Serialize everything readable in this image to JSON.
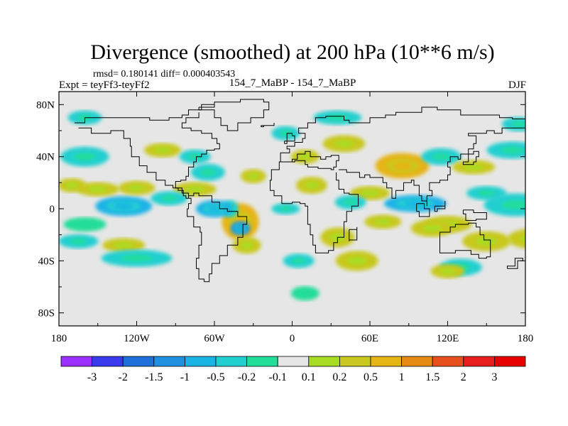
{
  "title": "Divergence (smoothed) at 200 hPa (10**6 m/s)",
  "stats": "rmsd= 0.180141 diff= 0.000403543",
  "expt": "Expt = teyFf3-teyFf2",
  "case": "154_7_MaBP - 154_7_MaBP",
  "season": "DJF",
  "chart_data": {
    "type": "heatmap",
    "title": "Divergence (smoothed) at 200 hPa (10**6 m/s)",
    "variable": "divergence difference",
    "units": "10**6 m/s",
    "x": {
      "range": [
        -180,
        180
      ],
      "ticks": [
        -180,
        -120,
        -60,
        0,
        60,
        120,
        180
      ],
      "tick_labels": [
        "180",
        "120W",
        "60W",
        "0",
        "60E",
        "120E",
        "180"
      ]
    },
    "y": {
      "range": [
        -90,
        90
      ],
      "ticks": [
        80,
        40,
        0,
        -40,
        -80
      ],
      "tick_labels": [
        "80N",
        "40N",
        "0",
        "40S",
        "80S"
      ]
    },
    "colorbar": {
      "levels": [
        "-3",
        "-2",
        "-1.5",
        "-1",
        "-0.5",
        "-0.2",
        "-0.1",
        "0.1",
        "0.2",
        "0.5",
        "1",
        "1.5",
        "2",
        "3"
      ],
      "colors": [
        "#9b30ff",
        "#3a3aee",
        "#1f6fd9",
        "#1e90e0",
        "#1ab3e6",
        "#22cfd0",
        "#22dd9a",
        "#e6e6e6",
        "#a6dd22",
        "#c8c81e",
        "#e6b414",
        "#e68a14",
        "#e6501e",
        "#e61e1e",
        "#e60000"
      ]
    },
    "fields": [
      {
        "lon": 172,
        "lat": 3,
        "value": -0.3
      },
      {
        "lon": 185,
        "lat": -23,
        "value": 0.3
      },
      {
        "lon": 150,
        "lat": -25,
        "value": 0.4
      },
      {
        "lon": 120,
        "lat": -12,
        "value": 0.3
      },
      {
        "lon": 95,
        "lat": 4,
        "value": -0.6
      },
      {
        "lon": 108,
        "lat": -15,
        "value": 0.3
      },
      {
        "lon": 85,
        "lat": 33,
        "value": 0.6
      },
      {
        "lon": 115,
        "lat": 40,
        "value": -0.3
      },
      {
        "lon": 140,
        "lat": 32,
        "value": 0.3
      },
      {
        "lon": 150,
        "lat": 12,
        "value": -0.3
      },
      {
        "lon": 60,
        "lat": 12,
        "value": 0.3
      },
      {
        "lon": 45,
        "lat": 5,
        "value": -0.3
      },
      {
        "lon": 70,
        "lat": -10,
        "value": 0.3
      },
      {
        "lon": 35,
        "lat": -22,
        "value": 0.4
      },
      {
        "lon": 50,
        "lat": -40,
        "value": 0.3
      },
      {
        "lon": 130,
        "lat": -45,
        "value": -0.3
      },
      {
        "lon": 120,
        "lat": -48,
        "value": 0.3
      },
      {
        "lon": 15,
        "lat": 18,
        "value": 0.3
      },
      {
        "lon": 10,
        "lat": 40,
        "value": 0.2
      },
      {
        "lon": -5,
        "lat": 58,
        "value": -0.3
      },
      {
        "lon": 35,
        "lat": 70,
        "value": -0.3
      },
      {
        "lon": 5,
        "lat": -40,
        "value": -0.3
      },
      {
        "lon": 10,
        "lat": -65,
        "value": -0.2
      },
      {
        "lon": -40,
        "lat": -10,
        "value": 0.7
      },
      {
        "lon": -48,
        "lat": 0,
        "value": -0.3
      },
      {
        "lon": -60,
        "lat": 0,
        "value": -0.8
      },
      {
        "lon": -40,
        "lat": -15,
        "value": -1.2
      },
      {
        "lon": -35,
        "lat": -28,
        "value": 0.3
      },
      {
        "lon": -30,
        "lat": 25,
        "value": 0.2
      },
      {
        "lon": -65,
        "lat": 28,
        "value": -0.3
      },
      {
        "lon": -75,
        "lat": 15,
        "value": 0.3
      },
      {
        "lon": -95,
        "lat": 8,
        "value": -0.3
      },
      {
        "lon": -130,
        "lat": 2,
        "value": -0.7
      },
      {
        "lon": -150,
        "lat": 15,
        "value": 0.4
      },
      {
        "lon": -120,
        "lat": 16,
        "value": 0.3
      },
      {
        "lon": -160,
        "lat": 40,
        "value": -0.3
      },
      {
        "lon": -170,
        "lat": 18,
        "value": 0.3
      },
      {
        "lon": -160,
        "lat": -12,
        "value": -0.2
      },
      {
        "lon": -130,
        "lat": -28,
        "value": 0.2
      },
      {
        "lon": -120,
        "lat": -38,
        "value": -0.4
      },
      {
        "lon": -165,
        "lat": -25,
        "value": -0.3
      },
      {
        "lon": -160,
        "lat": 70,
        "value": -0.3
      },
      {
        "lon": -100,
        "lat": 45,
        "value": 0.3
      },
      {
        "lon": -75,
        "lat": 40,
        "value": -0.3
      },
      {
        "lon": -5,
        "lat": 0,
        "value": -0.3
      },
      {
        "lon": 40,
        "lat": 50,
        "value": 0.4
      },
      {
        "lon": 170,
        "lat": 45,
        "value": -0.3
      },
      {
        "lon": 175,
        "lat": 65,
        "value": -0.3
      }
    ]
  }
}
